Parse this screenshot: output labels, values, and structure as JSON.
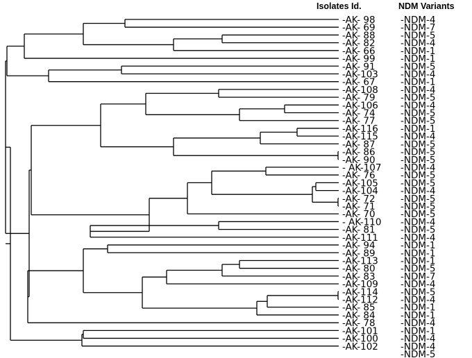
{
  "headers": {
    "isolates": "Isolates Id.",
    "variants": "NDM Variants"
  },
  "leaves": [
    {
      "id": "-AK- 98",
      "variant": "-NDM-4"
    },
    {
      "id": "-AK- 69",
      "variant": "-NDM-7"
    },
    {
      "id": "-AK- 88",
      "variant": "-NDM-5"
    },
    {
      "id": "-AK- 82",
      "variant": "-NDM-4"
    },
    {
      "id": "-AK- 66",
      "variant": "-NDM-1"
    },
    {
      "id": "-AK- 99",
      "variant": "-NDM-1"
    },
    {
      "id": "-AK- 91",
      "variant": "-NDM-5"
    },
    {
      "id": "-AK-103",
      "variant": "-NDM-4"
    },
    {
      "id": "-AK- 67",
      "variant": "-NDM-1"
    },
    {
      "id": "-AK-108",
      "variant": "-NDM-4"
    },
    {
      "id": "-AK- 79",
      "variant": "-NDM-5"
    },
    {
      "id": "-AK-106",
      "variant": "-NDM-4"
    },
    {
      "id": "-AK- 74",
      "variant": "-NDM-5"
    },
    {
      "id": "-AK- 77",
      "variant": "-NDM-5"
    },
    {
      "id": "-AK-116",
      "variant": "-NDM-1"
    },
    {
      "id": "-AK-115",
      "variant": "-NDM-4"
    },
    {
      "id": "-AK- 87",
      "variant": "-NDM-5"
    },
    {
      "id": "-AK- 86",
      "variant": "-NDM-5"
    },
    {
      "id": "-AK- 90",
      "variant": "-NDM-5"
    },
    {
      "id": "- AK-107",
      "variant": "-NDM-4"
    },
    {
      "id": "-AK- 76",
      "variant": "-NDM-5"
    },
    {
      "id": "-AK-105",
      "variant": "-NDM-5"
    },
    {
      "id": "-AK-104",
      "variant": "-NDM-4"
    },
    {
      "id": "-AK- 72",
      "variant": "-NDM-5"
    },
    {
      "id": "-AK- 71",
      "variant": "-NDM-5"
    },
    {
      "id": "-AK- 70",
      "variant": "-NDM-5"
    },
    {
      "id": "- AK-110",
      "variant": "-NDM-4"
    },
    {
      "id": "-AK- 81",
      "variant": "-NDM-5"
    },
    {
      "id": "-AK-111",
      "variant": "-NDM-4"
    },
    {
      "id": "-AK- 94",
      "variant": "-NDM-1"
    },
    {
      "id": "-AK- 89",
      "variant": "-NDM-1"
    },
    {
      "id": "-AK-113",
      "variant": "-NDM-1"
    },
    {
      "id": "-AK- 80",
      "variant": "-NDM-5"
    },
    {
      "id": "-AK- 83",
      "variant": "-NDM-7"
    },
    {
      "id": "-AK-109",
      "variant": "-NDM-4"
    },
    {
      "id": "-AK-114",
      "variant": "-NDM-5"
    },
    {
      "id": "-AK-112",
      "variant": "-NDM-4"
    },
    {
      "id": "-AK- 85",
      "variant": "-NDM-1"
    },
    {
      "id": "-AK- 84",
      "variant": "-NDM-1"
    },
    {
      "id": "-AK- 78",
      "variant": "-NDM-4"
    },
    {
      "id": "-AK-101",
      "variant": "-NDM-1"
    },
    {
      "id": "-AK-100",
      "variant": "-NDM-4"
    },
    {
      "id": "-AK-102",
      "variant": "-NDM-4"
    },
    {
      "id": "",
      "variant": "-NDM-5"
    }
  ]
}
